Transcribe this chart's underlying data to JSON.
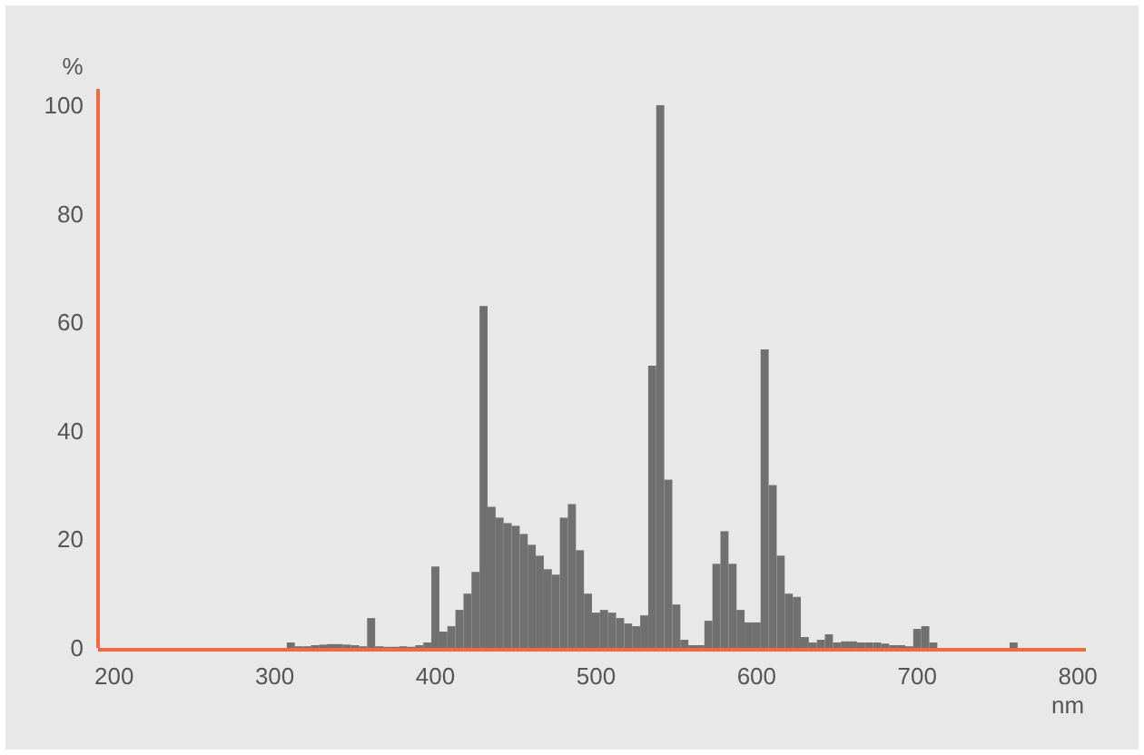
{
  "chart_data": {
    "type": "histogram",
    "xlabel": "nm",
    "ylabel": "%",
    "color": "#707070",
    "bins": [
      302.5,
      307.5,
      312.5,
      317.5,
      322.5,
      327.5,
      332.5,
      337.5,
      342.5,
      347.5,
      352.5,
      357.5,
      362.5,
      367.5,
      372.5,
      377.5,
      382.5,
      387.5,
      392.5,
      397.5,
      402.5,
      407.5,
      412.5,
      417.5,
      422.5,
      427.5,
      432.5,
      437.5,
      442.5,
      447.5,
      452.5,
      457.5,
      462.5,
      467.5,
      472.5,
      477.5,
      482.5,
      487.5,
      492.5,
      497.5,
      502.5,
      507.5,
      512.5,
      517.5,
      522.5,
      527.5,
      532.5,
      537.5,
      542.5,
      547.5,
      552.5,
      557.5,
      562.5,
      567.5,
      572.5,
      577.5,
      582.5,
      587.5,
      592.5,
      597.5,
      602.5,
      607.5,
      612.5,
      617.5,
      622.5,
      627.5,
      632.5,
      637.5,
      642.5,
      647.5,
      652.5,
      657.5,
      662.5,
      667.5,
      672.5,
      677.5,
      682.5,
      687.5,
      692.5,
      697.5,
      702.5,
      707.5,
      712.5,
      717.5,
      722.5,
      727.5,
      732.5,
      737.5,
      742.5,
      747.5,
      752.5,
      757.5,
      762.5
    ],
    "values": [
      0,
      1,
      0.3,
      0.3,
      0.5,
      0.6,
      0.7,
      0.7,
      0.6,
      0.5,
      0.3,
      5.5,
      0.3,
      0.2,
      0.2,
      0.3,
      0.2,
      0.5,
      1,
      15,
      3,
      4,
      7,
      10,
      14,
      63,
      26,
      24,
      23,
      22.5,
      21,
      19,
      17,
      14.5,
      13.5,
      24,
      26.5,
      18,
      10,
      6.5,
      7,
      6.5,
      5.5,
      4.5,
      4,
      6,
      52,
      100,
      31,
      8,
      1.5,
      0.5,
      0.5,
      5,
      15.5,
      21.5,
      15.5,
      7,
      4.7,
      4.7,
      55,
      30,
      17,
      10,
      9.4,
      2,
      1,
      1.5,
      2.5,
      1,
      1.2,
      1.2,
      1,
      1,
      1,
      0.8,
      0.5,
      0.5,
      0.3,
      3.5,
      4,
      1,
      0,
      0,
      0,
      0,
      0,
      0,
      0,
      0,
      0,
      1
    ],
    "xlim": [
      190,
      805
    ],
    "xticks": [
      200,
      300,
      400,
      500,
      600,
      700,
      800
    ],
    "ylim": [
      0,
      103
    ],
    "yticks": [
      0,
      20,
      40,
      60,
      80,
      100
    ],
    "grid": false
  }
}
